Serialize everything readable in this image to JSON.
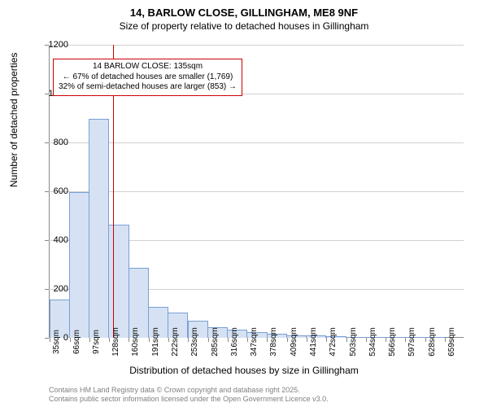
{
  "title": "14, BARLOW CLOSE, GILLINGHAM, ME8 9NF",
  "subtitle": "Size of property relative to detached houses in Gillingham",
  "chart": {
    "type": "histogram",
    "ylabel": "Number of detached properties",
    "xlabel": "Distribution of detached houses by size in Gillingham",
    "ylim": [
      0,
      1200
    ],
    "ytick_step": 200,
    "yticks": [
      0,
      200,
      400,
      600,
      800,
      1000,
      1200
    ],
    "xticks": [
      "35sqm",
      "66sqm",
      "97sqm",
      "128sqm",
      "160sqm",
      "191sqm",
      "222sqm",
      "253sqm",
      "285sqm",
      "316sqm",
      "347sqm",
      "378sqm",
      "409sqm",
      "441sqm",
      "472sqm",
      "503sqm",
      "534sqm",
      "566sqm",
      "597sqm",
      "628sqm",
      "659sqm"
    ],
    "values": [
      155,
      595,
      895,
      460,
      285,
      125,
      100,
      68,
      40,
      30,
      20,
      12,
      8,
      8,
      5,
      0,
      0,
      0,
      0,
      0
    ],
    "bar_fill": "#d6e2f3",
    "bar_stroke": "#7a9fd4",
    "grid_color": "#d0d0d0",
    "axis_color": "#888888",
    "background_color": "#ffffff",
    "label_fontsize": 12,
    "tick_fontsize": 11
  },
  "marker": {
    "x_value": 135,
    "color": "#cc0000"
  },
  "callout": {
    "line1": "14 BARLOW CLOSE: 135sqm",
    "line2": "← 67% of detached houses are smaller (1,769)",
    "line3": "32% of semi-detached houses are larger (853) →",
    "border_color": "#cc0000",
    "background_color": "#ffffff"
  },
  "footer": {
    "line1": "Contains HM Land Registry data © Crown copyright and database right 2025.",
    "line2": "Contains public sector information licensed under the Open Government Licence v3.0."
  }
}
